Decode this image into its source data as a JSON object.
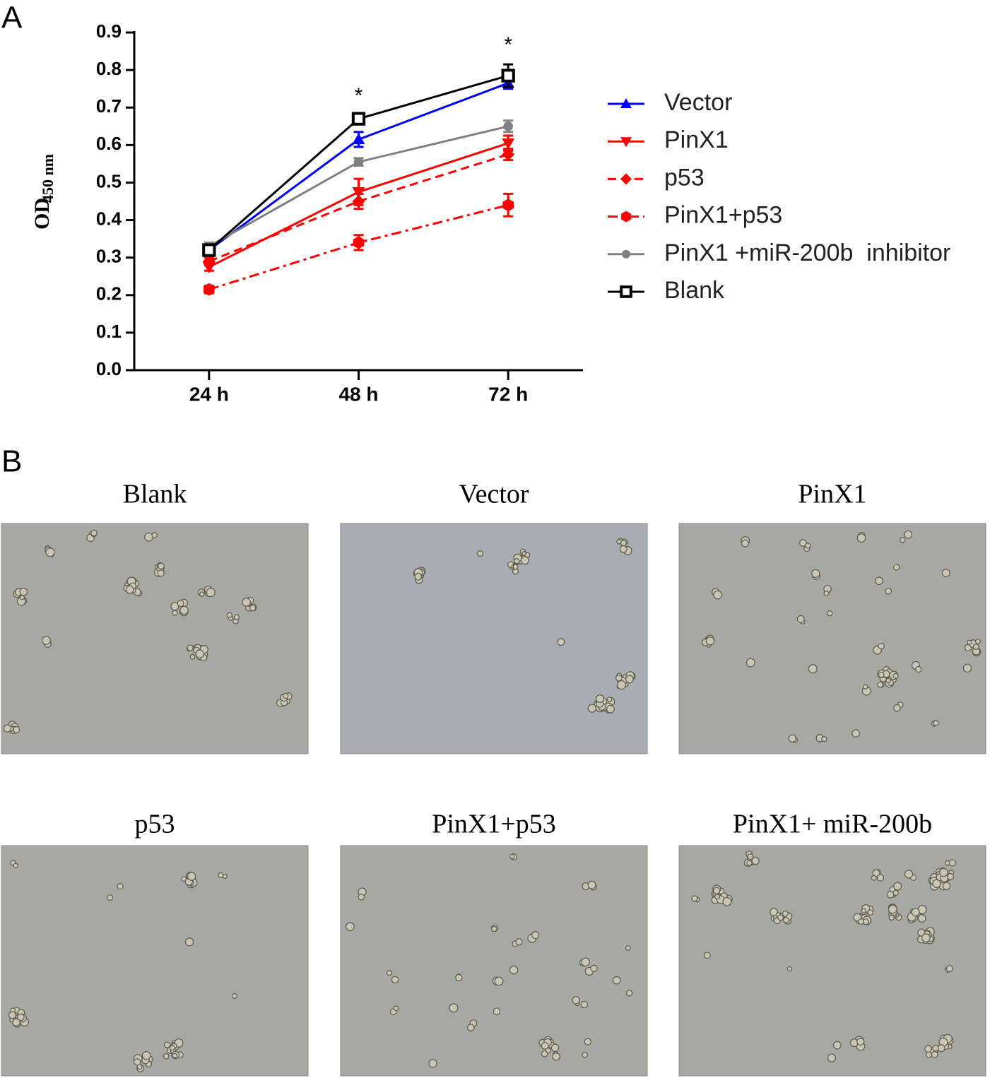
{
  "panel_labels": [
    "A",
    "B"
  ],
  "chart_data": {
    "type": "line",
    "ylabel": "OD",
    "ylabel_subscript": "450 nm",
    "categories": [
      "24 h",
      "48 h",
      "72 h"
    ],
    "ylim": [
      0,
      0.9
    ],
    "yticks": [
      {
        "value": 0,
        "label": "0.0"
      },
      0.1,
      0.2,
      0.3,
      0.4,
      0.5,
      0.6,
      0.7,
      0.8,
      0.9
    ],
    "series": [
      {
        "name": "Vector",
        "color": "#0000ff",
        "marker": "triangle-up",
        "line_style": "solid",
        "values": [
          0.32,
          0.615,
          0.765
        ],
        "errors": [
          0.01,
          0.02,
          0.015
        ]
      },
      {
        "name": "PinX1",
        "color": "#ff0000",
        "marker": "triangle-down",
        "line_style": "solid",
        "values": [
          0.275,
          0.475,
          0.605
        ],
        "errors": [
          0.01,
          0.035,
          0.02
        ]
      },
      {
        "name": "p53",
        "color": "#ff0000",
        "marker": "diamond",
        "line_style": "dashed",
        "values": [
          0.29,
          0.45,
          0.575
        ],
        "errors": [
          0.01,
          0.02,
          0.015
        ]
      },
      {
        "name": "PinX1+p53",
        "color": "#ff0000",
        "marker": "hexagon",
        "line_style": "dashdot",
        "values": [
          0.215,
          0.34,
          0.44
        ],
        "errors": [
          0.01,
          0.02,
          0.03
        ]
      },
      {
        "name": "PinX1 +miR-200b  inhibitor",
        "color": "#808080",
        "marker": "circle",
        "line_style": "solid",
        "values": [
          0.33,
          0.555,
          0.65
        ],
        "errors": [
          0.01,
          0.01,
          0.015
        ]
      },
      {
        "name": "Blank",
        "color": "#000000",
        "marker": "square-open",
        "line_style": "solid",
        "values": [
          0.32,
          0.67,
          0.785
        ],
        "errors": [
          0.01,
          0.01,
          0.03
        ]
      }
    ],
    "annotations": [
      {
        "text": "*",
        "category": "48 h"
      },
      {
        "text": "*",
        "category": "72 h"
      }
    ]
  },
  "micrographs": [
    {
      "title": "Blank"
    },
    {
      "title": "Vector"
    },
    {
      "title": "PinX1"
    },
    {
      "title": "p53"
    },
    {
      "title": "PinX1+p53"
    },
    {
      "title": "PinX1+ miR-200b"
    }
  ]
}
